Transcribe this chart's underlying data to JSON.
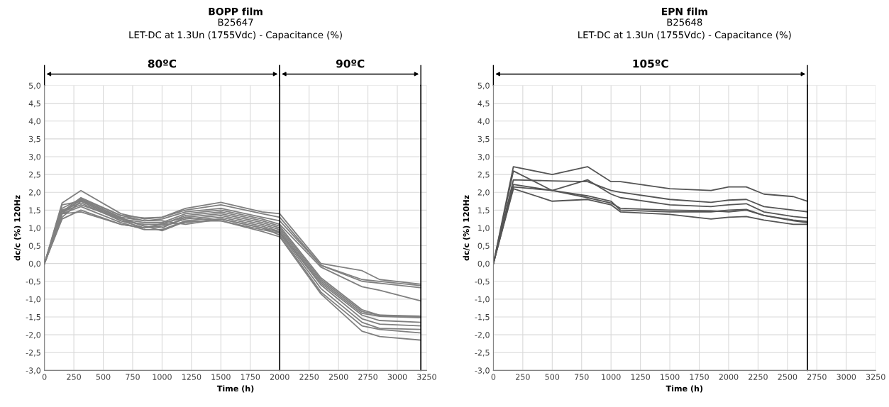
{
  "chart_data": [
    {
      "type": "line",
      "title": "BOPP film",
      "subtitle": "B25647\nLET-DC at 1.3Un (1755Vdc) - Capacitance (%)",
      "xlabel": "Time (h)",
      "ylabel": "dc/c (%) 120Hz",
      "x": [
        0,
        150,
        310,
        650,
        850,
        1000,
        1200,
        1500,
        1850,
        2000,
        2350,
        2700,
        2850,
        3200
      ],
      "series": [
        {
          "color": "#808080",
          "values": [
            0,
            1.7,
            2.05,
            1.4,
            1.25,
            1.3,
            1.55,
            1.72,
            1.45,
            1.4,
            0.0,
            -0.2,
            -0.45,
            -0.58
          ]
        },
        {
          "color": "#808080",
          "values": [
            0,
            1.45,
            1.85,
            1.35,
            1.28,
            1.3,
            1.5,
            1.65,
            1.4,
            1.3,
            -0.05,
            -0.45,
            -0.5,
            -0.62
          ]
        },
        {
          "color": "#808080",
          "values": [
            0,
            1.4,
            1.8,
            1.3,
            1.2,
            1.25,
            1.45,
            1.55,
            1.3,
            1.2,
            -0.05,
            -0.5,
            -0.55,
            -0.68
          ]
        },
        {
          "color": "#808080",
          "values": [
            0,
            1.3,
            1.75,
            1.25,
            1.15,
            1.15,
            1.4,
            1.5,
            1.25,
            1.1,
            -0.1,
            -0.65,
            -0.75,
            -1.05
          ]
        },
        {
          "color": "#808080",
          "values": [
            0,
            1.5,
            1.7,
            1.2,
            1.1,
            1.1,
            1.35,
            1.45,
            1.2,
            1.05,
            -0.4,
            -1.3,
            -1.45,
            -1.5
          ]
        },
        {
          "color": "#808080",
          "values": [
            0,
            1.45,
            1.78,
            1.28,
            1.05,
            1.0,
            1.3,
            1.4,
            1.15,
            1.0,
            -0.45,
            -1.35,
            -1.45,
            -1.48
          ]
        },
        {
          "color": "#808080",
          "values": [
            0,
            1.65,
            1.75,
            1.2,
            1.0,
            1.05,
            1.25,
            1.35,
            1.1,
            0.95,
            -0.5,
            -1.4,
            -1.48,
            -1.52
          ]
        },
        {
          "color": "#808080",
          "values": [
            0,
            1.4,
            1.6,
            1.15,
            0.95,
            0.95,
            1.2,
            1.3,
            1.05,
            0.9,
            -0.55,
            -1.45,
            -1.6,
            -1.65
          ]
        },
        {
          "color": "#808080",
          "values": [
            0,
            1.25,
            1.5,
            1.1,
            1.0,
            1.1,
            1.15,
            1.25,
            1.0,
            0.88,
            -0.6,
            -1.55,
            -1.7,
            -1.75
          ]
        },
        {
          "color": "#808080",
          "values": [
            0,
            1.4,
            1.45,
            1.1,
            1.0,
            1.12,
            1.3,
            1.2,
            0.95,
            0.85,
            -0.7,
            -1.65,
            -1.82,
            -1.85
          ]
        },
        {
          "color": "#808080",
          "values": [
            0,
            1.55,
            1.82,
            1.35,
            1.2,
            1.2,
            1.1,
            1.25,
            1.0,
            0.8,
            -0.8,
            -1.75,
            -1.85,
            -1.95
          ]
        },
        {
          "color": "#808080",
          "values": [
            0,
            1.45,
            1.65,
            1.25,
            1.05,
            0.92,
            1.18,
            1.2,
            0.9,
            0.75,
            -0.85,
            -1.9,
            -2.05,
            -2.15
          ]
        }
      ],
      "xlim": [
        0,
        3250
      ],
      "xticks": [
        0,
        250,
        500,
        750,
        1000,
        1250,
        1500,
        1750,
        2000,
        2250,
        2500,
        2750,
        3000,
        3250
      ],
      "ylim": [
        -3,
        5
      ],
      "yticks": [
        {
          "value": -3,
          "label": "-3,0"
        },
        {
          "value": -2.5,
          "label": "-2,5"
        },
        {
          "value": -2,
          "label": "-2,0"
        },
        {
          "value": -1.5,
          "label": "-1,5"
        },
        {
          "value": -1,
          "label": "-1,0"
        },
        {
          "value": -0.5,
          "label": "-0,5"
        },
        {
          "value": 0,
          "label": "0,0"
        },
        {
          "value": 0.5,
          "label": "0,5"
        },
        {
          "value": 1,
          "label": "1,0"
        },
        {
          "value": 1.5,
          "label": "1,5"
        },
        {
          "value": 2,
          "label": "2,0"
        },
        {
          "value": 2.5,
          "label": "2,5"
        },
        {
          "value": 3,
          "label": "3,0"
        },
        {
          "value": 3.5,
          "label": "3,5"
        },
        {
          "value": 4,
          "label": "4,0"
        },
        {
          "value": 4.5,
          "label": "4,5"
        },
        {
          "value": 5,
          "label": "5,0"
        }
      ],
      "ref_lines": [
        {
          "axis": "x",
          "value": 2000,
          "color": "#000000"
        },
        {
          "axis": "x",
          "value": 3200,
          "color": "#000000"
        }
      ],
      "annotations": [
        "80ºC",
        "90ºC"
      ],
      "grid": true,
      "marker": "none",
      "line_style": "solid"
    },
    {
      "type": "line",
      "title": "EPN film",
      "subtitle": "B25648\nLET-DC at 1.3Un (1755Vdc) - Capacitance (%)",
      "xlabel": "Time (h)",
      "ylabel": "dc/c (%) 120Hz",
      "x": [
        0,
        170,
        500,
        800,
        1000,
        1080,
        1500,
        1850,
        2000,
        2150,
        2300,
        2550,
        2670
      ],
      "series": [
        {
          "color": "#555555",
          "values": [
            0,
            2.72,
            2.5,
            2.72,
            2.3,
            2.3,
            2.1,
            2.05,
            2.15,
            2.15,
            1.95,
            1.88,
            1.75
          ]
        },
        {
          "color": "#555555",
          "values": [
            0,
            2.6,
            2.05,
            1.9,
            1.75,
            1.5,
            1.45,
            1.45,
            1.5,
            1.52,
            1.35,
            1.22,
            1.18
          ]
        },
        {
          "color": "#555555",
          "values": [
            0,
            2.35,
            2.32,
            2.3,
            2.05,
            2.0,
            1.8,
            1.72,
            1.78,
            1.8,
            1.6,
            1.5,
            1.45
          ]
        },
        {
          "color": "#555555",
          "values": [
            0,
            2.22,
            2.05,
            2.35,
            1.95,
            1.85,
            1.65,
            1.6,
            1.65,
            1.68,
            1.45,
            1.32,
            1.28
          ]
        },
        {
          "color": "#555555",
          "values": [
            0,
            2.15,
            2.05,
            1.85,
            1.7,
            1.55,
            1.5,
            1.48,
            1.45,
            1.5,
            1.35,
            1.2,
            1.15
          ]
        },
        {
          "color": "#555555",
          "values": [
            0,
            2.1,
            1.75,
            1.8,
            1.65,
            1.45,
            1.38,
            1.25,
            1.3,
            1.32,
            1.22,
            1.1,
            1.1
          ]
        }
      ],
      "xlim": [
        0,
        3250
      ],
      "xticks": [
        0,
        250,
        500,
        750,
        1000,
        1250,
        1500,
        1750,
        2000,
        2250,
        2500,
        2750,
        3000,
        3250
      ],
      "ylim": [
        -3,
        5
      ],
      "yticks": [
        {
          "value": -3,
          "label": "-3,0"
        },
        {
          "value": -2.5,
          "label": "-2,5"
        },
        {
          "value": -2,
          "label": "-2,0"
        },
        {
          "value": -1.5,
          "label": "-1,5"
        },
        {
          "value": -1,
          "label": "-1,0"
        },
        {
          "value": -0.5,
          "label": "-0,5"
        },
        {
          "value": 0,
          "label": "0,0"
        },
        {
          "value": 0.5,
          "label": "0,5"
        },
        {
          "value": 1,
          "label": "1,0"
        },
        {
          "value": 1.5,
          "label": "1,5"
        },
        {
          "value": 2,
          "label": "2,0"
        },
        {
          "value": 2.5,
          "label": "2,5"
        },
        {
          "value": 3,
          "label": "3,0"
        },
        {
          "value": 3.5,
          "label": "3,5"
        },
        {
          "value": 4,
          "label": "4,0"
        },
        {
          "value": 4.5,
          "label": "4,5"
        },
        {
          "value": 5,
          "label": "5,0"
        }
      ],
      "ref_lines": [
        {
          "axis": "x",
          "value": 2670,
          "color": "#000000"
        }
      ],
      "annotations": [
        "105ºC"
      ],
      "grid": true,
      "marker": "none",
      "line_style": "solid"
    }
  ]
}
